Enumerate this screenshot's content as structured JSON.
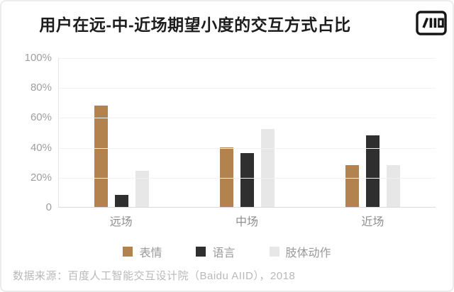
{
  "header": {
    "title": "用户在远-中-近场期望小度的交互方式占比",
    "logo_text": "/IID"
  },
  "chart_data": {
    "type": "bar",
    "title": "用户在远-中-近场期望小度的交互方式占比",
    "categories": [
      "远场",
      "中场",
      "近场"
    ],
    "series": [
      {
        "name": "表情",
        "color": "#b2824f",
        "values": [
          68,
          40,
          28
        ]
      },
      {
        "name": "语言",
        "color": "#2f2f2f",
        "values": [
          8,
          36,
          48
        ]
      },
      {
        "name": "肢体动作",
        "color": "#e7e7e7",
        "values": [
          24,
          52,
          28
        ]
      }
    ],
    "ylabel": "",
    "xlabel": "",
    "ylim": [
      0,
      100
    ],
    "y_ticks": [
      "100%",
      "80%",
      "60%",
      "40%",
      "20%",
      "0"
    ],
    "grid": true,
    "legend_position": "bottom"
  },
  "footer": {
    "source": "数据来源：百度人工智能交互设计院（Baidu AIID），2018"
  }
}
